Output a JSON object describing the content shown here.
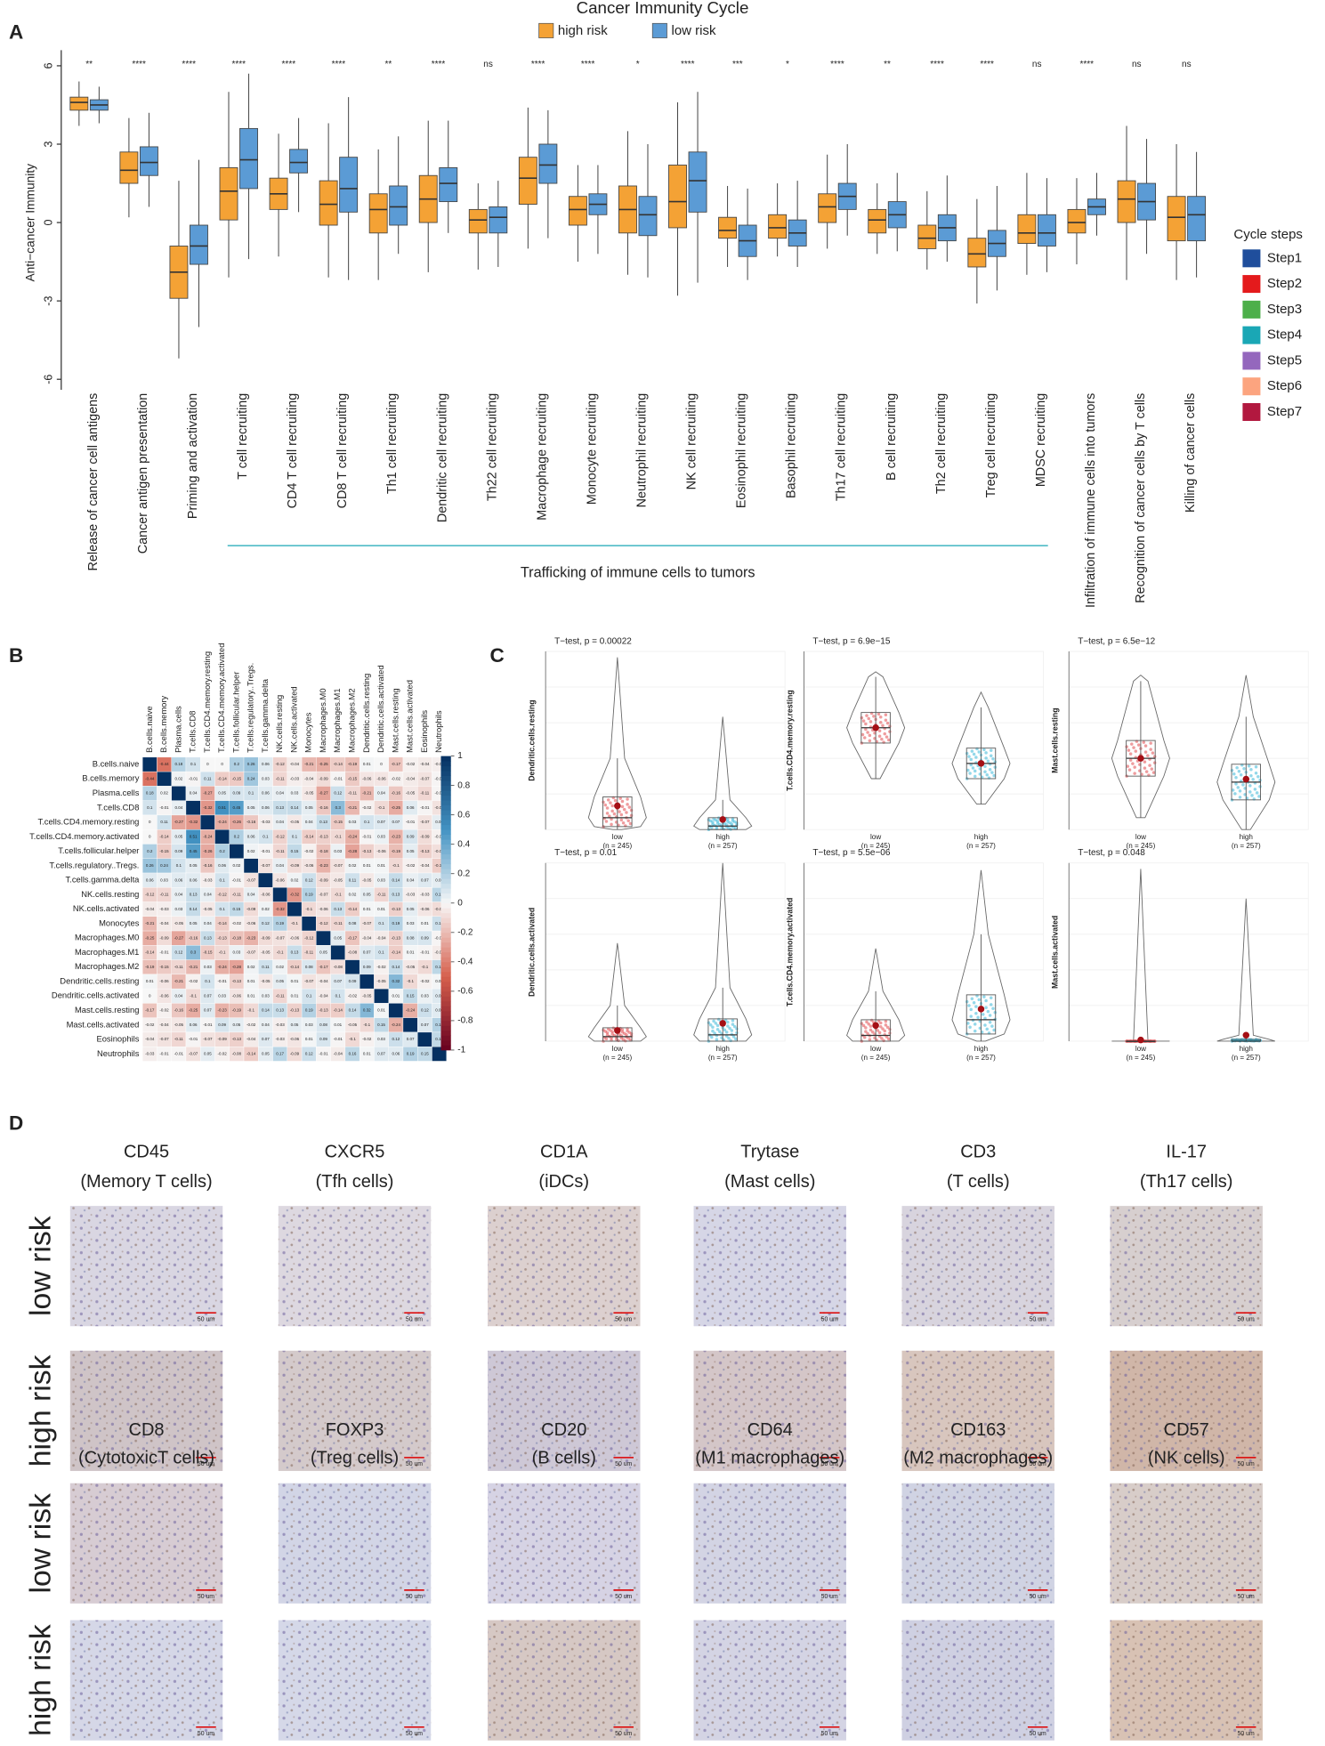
{
  "panel_labels": [
    "A",
    "B",
    "C",
    "D"
  ],
  "chart_data": [
    {
      "type": "box",
      "title": "Cancer Immunity Cycle",
      "ylabel": "Anti−cancer Immunity",
      "ylim": [
        -6.4,
        6.6
      ],
      "yticks": [
        6,
        3,
        0,
        -3,
        -6
      ],
      "categories": [
        "Release of cancer cell antigens",
        "Cancer antigen presentation",
        "Priming and activation",
        "T cell recruiting",
        "CD4 T cell recruiting",
        "CD8 T cell recruiting",
        "Th1 cell recruiting",
        "Dendritic cell recruiting",
        "Th22 cell recruiting",
        "Macrophage recruiting",
        "Monocyte recruiting",
        "Neutrophil recruiting",
        "NK cell recruiting",
        "Eosinophil recruiting",
        "Basophil recruiting",
        "Th17 cell recruiting",
        "B cell recruiting",
        "Th2 cell recruiting",
        "Treg cell recruiting",
        "MDSC recruiting",
        "Infiltration of immune cells into tumors",
        "Recognition of cancer cells by T cells",
        "Killing of cancer cells"
      ],
      "category_colors": [
        "#1f4e9c",
        "#e41a1c",
        "#4daf4a",
        "#1aa7b5",
        "#1aa7b5",
        "#1aa7b5",
        "#1aa7b5",
        "#1aa7b5",
        "#1aa7b5",
        "#1aa7b5",
        "#1aa7b5",
        "#1aa7b5",
        "#1aa7b5",
        "#1aa7b5",
        "#1aa7b5",
        "#1aa7b5",
        "#1aa7b5",
        "#1aa7b5",
        "#1aa7b5",
        "#1aa7b5",
        "#9467bd",
        "#fca47f",
        "#b2183f"
      ],
      "significance": [
        "**",
        "****",
        "****",
        "****",
        "****",
        "****",
        "**",
        "****",
        "ns",
        "****",
        "****",
        "*",
        "****",
        "***",
        "*",
        "****",
        "**",
        "****",
        "****",
        "ns",
        "****",
        "ns",
        "ns"
      ],
      "group_label": "Trafficking of immune cells to tumors",
      "series": [
        {
          "name": "high risk",
          "color": "#f4a235",
          "values": [
            [
              3.7,
              4.3,
              4.6,
              4.8,
              5.4
            ],
            [
              0.2,
              1.5,
              2.0,
              2.7,
              4.0
            ],
            [
              -5.2,
              -2.9,
              -1.9,
              -0.9,
              1.6
            ],
            [
              -2.1,
              0.1,
              1.2,
              2.1,
              5.0
            ],
            [
              -1.3,
              0.5,
              1.1,
              1.7,
              3.4
            ],
            [
              -2.1,
              -0.1,
              0.7,
              1.6,
              3.8
            ],
            [
              -2.2,
              -0.4,
              0.5,
              1.1,
              2.8
            ],
            [
              -1.9,
              0.0,
              0.9,
              1.8,
              3.9
            ],
            [
              -1.8,
              -0.4,
              0.1,
              0.5,
              1.5
            ],
            [
              -1.0,
              0.7,
              1.7,
              2.5,
              4.4
            ],
            [
              -1.5,
              -0.1,
              0.5,
              1.0,
              2.2
            ],
            [
              -2.0,
              -0.4,
              0.5,
              1.4,
              3.5
            ],
            [
              -2.8,
              -0.2,
              0.8,
              2.2,
              4.6
            ],
            [
              -1.7,
              -0.6,
              -0.3,
              0.2,
              1.4
            ],
            [
              -1.3,
              -0.6,
              -0.2,
              0.3,
              1.5
            ],
            [
              -1.0,
              0.0,
              0.6,
              1.1,
              2.6
            ],
            [
              -1.2,
              -0.4,
              0.1,
              0.5,
              1.5
            ],
            [
              -1.8,
              -1.0,
              -0.6,
              -0.1,
              1.2
            ],
            [
              -3.1,
              -1.7,
              -1.2,
              -0.6,
              0.9
            ],
            [
              -2.0,
              -0.8,
              -0.4,
              0.3,
              1.9
            ],
            [
              -1.6,
              -0.4,
              0.0,
              0.5,
              1.7
            ],
            [
              -2.2,
              0.0,
              0.9,
              1.6,
              3.7
            ],
            [
              -2.2,
              -0.7,
              0.2,
              1.0,
              3.0
            ]
          ]
        },
        {
          "name": "low risk",
          "color": "#5b9bd5",
          "values": [
            [
              3.8,
              4.3,
              4.5,
              4.7,
              5.2
            ],
            [
              0.6,
              1.8,
              2.3,
              2.9,
              4.2
            ],
            [
              -4.0,
              -1.6,
              -0.9,
              -0.1,
              2.4
            ],
            [
              -1.4,
              1.3,
              2.4,
              3.6,
              5.7
            ],
            [
              0.4,
              1.9,
              2.3,
              2.8,
              4.0
            ],
            [
              -2.2,
              0.4,
              1.3,
              2.5,
              4.8
            ],
            [
              -1.2,
              -0.1,
              0.6,
              1.4,
              3.3
            ],
            [
              -0.4,
              0.8,
              1.5,
              2.1,
              3.9
            ],
            [
              -1.7,
              -0.4,
              0.2,
              0.6,
              1.6
            ],
            [
              -0.6,
              1.5,
              2.2,
              3.0,
              4.3
            ],
            [
              -1.2,
              0.3,
              0.7,
              1.1,
              2.2
            ],
            [
              -2.1,
              -0.5,
              0.3,
              1.0,
              3.0
            ],
            [
              -2.3,
              0.4,
              1.6,
              2.7,
              5.0
            ],
            [
              -2.2,
              -1.3,
              -0.7,
              -0.1,
              1.3
            ],
            [
              -1.7,
              -0.9,
              -0.4,
              0.1,
              1.6
            ],
            [
              -0.5,
              0.5,
              1.0,
              1.5,
              3.0
            ],
            [
              -1.1,
              -0.2,
              0.3,
              0.8,
              1.9
            ],
            [
              -1.5,
              -0.7,
              -0.2,
              0.3,
              1.8
            ],
            [
              -2.6,
              -1.3,
              -0.8,
              -0.3,
              1.4
            ],
            [
              -1.9,
              -0.9,
              -0.4,
              0.3,
              1.7
            ],
            [
              -0.5,
              0.3,
              0.6,
              0.9,
              1.9
            ],
            [
              -1.2,
              0.1,
              0.8,
              1.5,
              3.2
            ],
            [
              -2.1,
              -0.7,
              0.3,
              1.0,
              2.7
            ]
          ]
        }
      ],
      "steps_legend": {
        "title": "Cycle steps",
        "names": [
          "Step1",
          "Step2",
          "Step3",
          "Step4",
          "Step5",
          "Step6",
          "Step7"
        ],
        "colors": [
          "#1f4e9c",
          "#e41a1c",
          "#4daf4a",
          "#1aa7b5",
          "#9467bd",
          "#fca47f",
          "#b2183f"
        ]
      }
    },
    {
      "type": "heatmap",
      "variables": [
        "B.cells.naive",
        "B.cells.memory",
        "Plasma.cells",
        "T.cells.CD8",
        "T.cells.CD4.memory.resting",
        "T.cells.CD4.memory.activated",
        "T.cells.follicular.helper",
        "T.cells.regulatory..Tregs.",
        "T.cells.gamma.delta",
        "NK.cells.resting",
        "NK.cells.activated",
        "Monocytes",
        "Macrophages.M0",
        "Macrophages.M1",
        "Macrophages.M2",
        "Dendritic.cells.resting",
        "Dendritic.cells.activated",
        "Mast.cells.resting",
        "Mast.cells.activated",
        "Eosinophils",
        "Neutrophils"
      ],
      "values": [
        [
          1
        ],
        [
          -0.44,
          1
        ],
        [
          0.18,
          0.02,
          1
        ],
        [
          0.1,
          -0.01,
          0.04,
          1
        ],
        [
          0,
          0.11,
          -0.27,
          -0.32,
          1
        ],
        [
          0,
          -0.14,
          0.05,
          0.51,
          -0.24,
          1
        ],
        [
          0.2,
          -0.15,
          0.09,
          0.45,
          -0.26,
          0.2,
          1
        ],
        [
          0.26,
          0.24,
          0.1,
          0.05,
          -0.16,
          0.06,
          0.02,
          1
        ],
        [
          0.06,
          0.03,
          0.06,
          0.06,
          -0.03,
          0.1,
          -0.01,
          -0.07,
          1
        ],
        [
          -0.12,
          -0.11,
          0.04,
          0.13,
          0.04,
          -0.12,
          -0.11,
          0.04,
          -0.06,
          1
        ],
        [
          -0.04,
          -0.03,
          0.03,
          0.14,
          -0.05,
          0.1,
          0.15,
          -0.09,
          0.02,
          -0.32,
          1
        ],
        [
          -0.21,
          -0.04,
          -0.05,
          0.05,
          0.04,
          -0.14,
          -0.02,
          -0.06,
          0.12,
          0.19,
          -0.1,
          1
        ],
        [
          -0.25,
          -0.09,
          -0.27,
          -0.16,
          0.13,
          -0.13,
          -0.18,
          -0.23,
          -0.09,
          -0.07,
          -0.06,
          -0.12,
          1
        ],
        [
          -0.14,
          -0.01,
          0.12,
          0.3,
          -0.15,
          -0.1,
          0.03,
          -0.07,
          -0.05,
          -0.1,
          0.13,
          -0.11,
          0.05,
          1
        ],
        [
          -0.19,
          -0.15,
          -0.11,
          -0.21,
          0.03,
          -0.24,
          -0.28,
          0.02,
          0.11,
          0.02,
          -0.14,
          0.08,
          -0.17,
          -0.08,
          1
        ],
        [
          0.01,
          -0.06,
          -0.21,
          -0.02,
          0.1,
          -0.01,
          -0.13,
          0.01,
          -0.05,
          0.05,
          0.01,
          -0.07,
          -0.04,
          0.07,
          0.09,
          1
        ],
        [
          0,
          -0.06,
          0.04,
          -0.1,
          0.07,
          0.03,
          -0.06,
          0.01,
          0.03,
          -0.11,
          0.01,
          0.1,
          -0.04,
          0.1,
          -0.02,
          -0.05,
          1
        ],
        [
          -0.17,
          -0.02,
          -0.16,
          -0.25,
          0.07,
          -0.23,
          -0.19,
          -0.1,
          0.14,
          0.13,
          -0.13,
          0.19,
          -0.13,
          -0.14,
          0.14,
          0.32,
          0.01,
          1
        ],
        [
          -0.02,
          -0.04,
          -0.05,
          0.06,
          -0.01,
          0.09,
          0.05,
          -0.02,
          0.04,
          -0.03,
          0.05,
          0.03,
          0.08,
          0.01,
          -0.05,
          -0.1,
          0.15,
          -0.24,
          1
        ],
        [
          -0.04,
          -0.07,
          -0.11,
          -0.01,
          -0.07,
          -0.09,
          -0.13,
          -0.04,
          0.07,
          -0.03,
          -0.06,
          0.01,
          0.09,
          -0.01,
          -0.1,
          -0.02,
          0.03,
          0.12,
          0.07,
          1
        ],
        [
          -0.03,
          -0.01,
          -0.01,
          -0.07,
          0.05,
          -0.02,
          -0.08,
          -0.14,
          0.05,
          0.17,
          -0.09,
          0.12,
          -0.01,
          -0.04,
          0.16,
          0.01,
          0.07,
          0.06,
          0.19,
          0.15,
          1
        ]
      ],
      "zlim": [
        -1,
        1
      ],
      "colorbar_ticks": [
        1,
        0.8,
        0.6,
        0.4,
        0.2,
        0,
        -0.2,
        -0.4,
        -0.6,
        -0.8,
        -1
      ]
    },
    {
      "type": "violin",
      "title": "T−test, p = 0.00022",
      "ylabel": "Dendritic.cells.resting",
      "ylim": [
        0,
        0.3
      ],
      "categories": [
        "low",
        "high"
      ],
      "n_labels": [
        "(n = 245)",
        "(n = 257)"
      ],
      "colors": [
        "#e03a3e",
        "#27b2d6"
      ],
      "boxes": [
        [
          0,
          0.005,
          0.02,
          0.055,
          0.12
        ],
        [
          0,
          0,
          0.006,
          0.02,
          0.05
        ]
      ],
      "max": [
        0.29,
        0.19
      ],
      "means": [
        0.04,
        0.017
      ]
    },
    {
      "type": "violin",
      "title": "T−test, p = 6.9e−15",
      "ylabel": "T.cells.CD4.memory.resting",
      "ylim": [
        0,
        0.35
      ],
      "categories": [
        "low",
        "high"
      ],
      "n_labels": [
        "(n = 245)",
        "(n = 257)"
      ],
      "colors": [
        "#e03a3e",
        "#27b2d6"
      ],
      "boxes": [
        [
          0.1,
          0.17,
          0.2,
          0.23,
          0.3
        ],
        [
          0.05,
          0.1,
          0.13,
          0.16,
          0.24
        ]
      ],
      "max": [
        0.31,
        0.27
      ],
      "means": [
        0.2,
        0.13
      ]
    },
    {
      "type": "violin",
      "title": "T−test, p = 6.5e−12",
      "ylabel": "Mast.cells.resting",
      "ylim": [
        0,
        0.3
      ],
      "categories": [
        "low",
        "high"
      ],
      "n_labels": [
        "(n = 245)",
        "(n = 257)"
      ],
      "colors": [
        "#e03a3e",
        "#27b2d6"
      ],
      "boxes": [
        [
          0.02,
          0.09,
          0.12,
          0.15,
          0.25
        ],
        [
          0,
          0.05,
          0.08,
          0.11,
          0.19
        ]
      ],
      "max": [
        0.26,
        0.26
      ],
      "means": [
        0.12,
        0.085
      ]
    },
    {
      "type": "violin",
      "title": "T−test, p = 0.01",
      "ylabel": "Dendritic.cells.activated",
      "ylim": [
        0,
        0.2
      ],
      "categories": [
        "low",
        "high"
      ],
      "n_labels": [
        "(n = 245)",
        "(n = 257)"
      ],
      "colors": [
        "#e03a3e",
        "#27b2d6"
      ],
      "boxes": [
        [
          0,
          0,
          0.005,
          0.015,
          0.04
        ],
        [
          0,
          0,
          0.007,
          0.025,
          0.06
        ]
      ],
      "max": [
        0.11,
        0.2
      ],
      "means": [
        0.012,
        0.02
      ]
    },
    {
      "type": "violin",
      "title": "T−test, p = 5.5e−06",
      "ylabel": "T.cells.CD4.memory.activated",
      "ylim": [
        0,
        0.25
      ],
      "categories": [
        "low",
        "high"
      ],
      "n_labels": [
        "(n = 245)",
        "(n = 257)"
      ],
      "colors": [
        "#e03a3e",
        "#27b2d6"
      ],
      "boxes": [
        [
          0,
          0,
          0.008,
          0.03,
          0.07
        ],
        [
          0,
          0.01,
          0.03,
          0.065,
          0.15
        ]
      ],
      "max": [
        0.13,
        0.24
      ],
      "means": [
        0.022,
        0.045
      ]
    },
    {
      "type": "violin",
      "title": "T−test, p = 0.048",
      "ylabel": "Mast.cells.activated",
      "ylim": [
        0,
        0.3
      ],
      "categories": [
        "low",
        "high"
      ],
      "n_labels": [
        "(n = 245)",
        "(n = 257)"
      ],
      "colors": [
        "#e03a3e",
        "#27b2d6"
      ],
      "boxes": [
        [
          0,
          0,
          0,
          0,
          0
        ],
        [
          0,
          0,
          0,
          0.003,
          0.01
        ]
      ],
      "max": [
        0.29,
        0.24
      ],
      "means": [
        0.002,
        0.01
      ]
    }
  ],
  "ihc": {
    "row_labels": [
      "low risk",
      "high risk"
    ],
    "scale_label": "50 um",
    "markers": [
      {
        "name": "CD45",
        "cells": "(Memory T cells)"
      },
      {
        "name": "CXCR5",
        "cells": "(Tfh cells)"
      },
      {
        "name": "CD1A",
        "cells": "(iDCs)"
      },
      {
        "name": "Trytase",
        "cells": "(Mast cells)"
      },
      {
        "name": "CD3",
        "cells": "(T cells)"
      },
      {
        "name": "IL-17",
        "cells": "(Th17 cells)"
      },
      {
        "name": "CD8",
        "cells": "(CytotoxicT cells)"
      },
      {
        "name": "FOXP3",
        "cells": "(Treg cells)"
      },
      {
        "name": "CD20",
        "cells": "(B cells)"
      },
      {
        "name": "CD64",
        "cells": "(M1 macrophages)"
      },
      {
        "name": "CD163",
        "cells": "(M2 macrophages)"
      },
      {
        "name": "CD57",
        "cells": "(NK cells)"
      }
    ]
  }
}
